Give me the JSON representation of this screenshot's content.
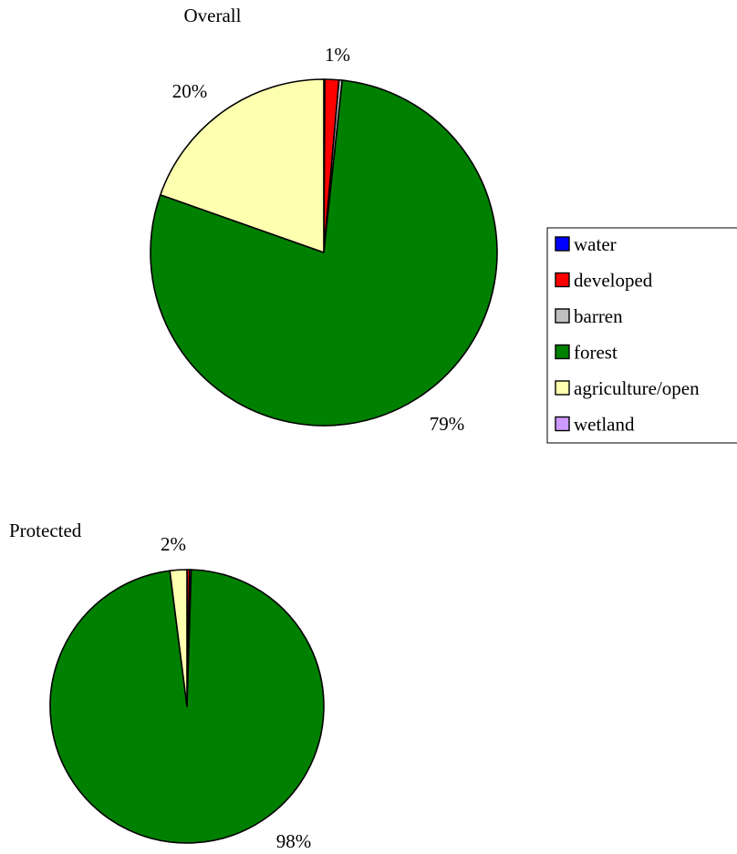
{
  "chart_data": [
    {
      "type": "pie",
      "title": "Overall",
      "slices": [
        {
          "label": "water",
          "value": 0.1,
          "color": "#0000ff"
        },
        {
          "label": "developed",
          "value": 1.3,
          "color": "#ff0000"
        },
        {
          "label": "barren",
          "value": 0.3,
          "color": "#c0c0c0"
        },
        {
          "label": "forest",
          "value": 78.7,
          "color": "#008000"
        },
        {
          "label": "agriculture/open",
          "value": 19.6,
          "color": "#ffffb0"
        },
        {
          "label": "wetland",
          "value": 0.0,
          "color": "#cc99ff"
        }
      ],
      "data_labels": [
        {
          "text": "1%",
          "slice": "developed"
        },
        {
          "text": "79%",
          "slice": "forest"
        },
        {
          "text": "20%",
          "slice": "agriculture/open"
        }
      ],
      "legend": {
        "position": "right",
        "entries": [
          "water",
          "developed",
          "barren",
          "forest",
          "agriculture/open",
          "wetland"
        ]
      }
    },
    {
      "type": "pie",
      "title": "Protected",
      "slices": [
        {
          "label": "water",
          "value": 0.0,
          "color": "#0000ff"
        },
        {
          "label": "developed",
          "value": 0.3,
          "color": "#ff0000"
        },
        {
          "label": "barren",
          "value": 0.2,
          "color": "#c0c0c0"
        },
        {
          "label": "forest",
          "value": 97.5,
          "color": "#008000"
        },
        {
          "label": "agriculture/open",
          "value": 2.0,
          "color": "#ffffb0"
        },
        {
          "label": "wetland",
          "value": 0.0,
          "color": "#cc99ff"
        }
      ],
      "data_labels": [
        {
          "text": "2%",
          "slice": "agriculture/open"
        },
        {
          "text": "98%",
          "slice": "forest"
        }
      ]
    }
  ]
}
